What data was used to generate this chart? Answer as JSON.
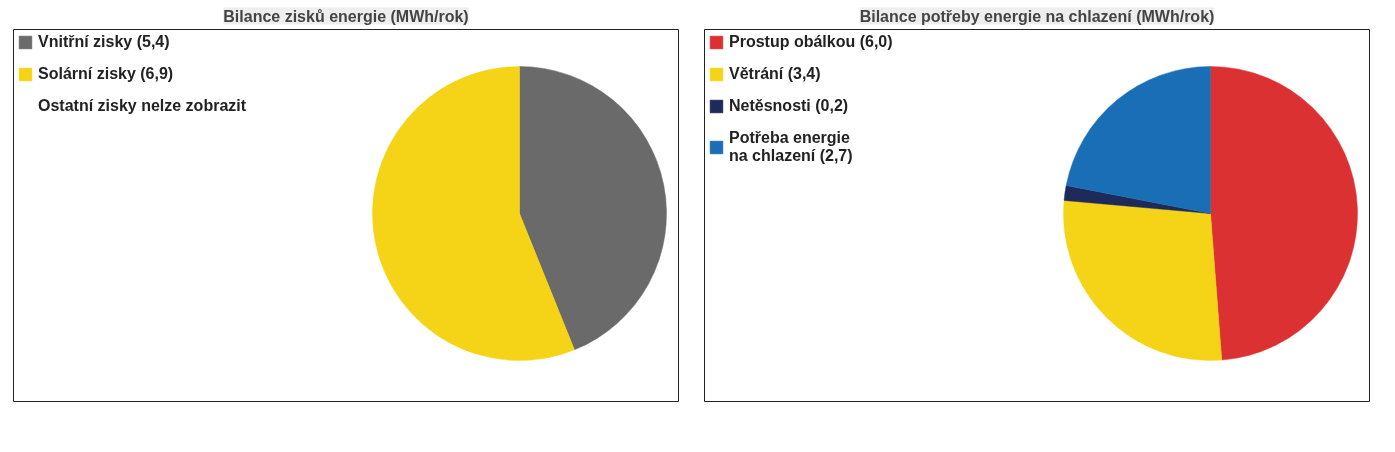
{
  "chart_data": [
    {
      "type": "pie",
      "title": "Bilance zisků energie (MWh/rok)",
      "categories": [
        "Vnitřní zisky (5,4)",
        "Solární zisky (6,9)",
        "Ostatní zisky nelze zobrazit"
      ],
      "values": [
        5.4,
        6.9,
        null
      ],
      "colors": [
        "#6a6a6a",
        "#f5d417",
        "#dc3132"
      ],
      "legend": "left"
    },
    {
      "type": "pie",
      "title": "Bilance potřeby energie na chlazení (MWh/rok)",
      "categories": [
        "Prostup obálkou (6,0)",
        "Větrání (3,4)",
        "Netěsnosti (0,2)",
        "Potřeba energie\nna chlazení (2,7)"
      ],
      "values": [
        6.0,
        3.4,
        0.2,
        2.7
      ],
      "colors": [
        "#dc3132",
        "#f5d417",
        "#1e2a5a",
        "#1a6eb5"
      ],
      "legend": "left"
    }
  ]
}
